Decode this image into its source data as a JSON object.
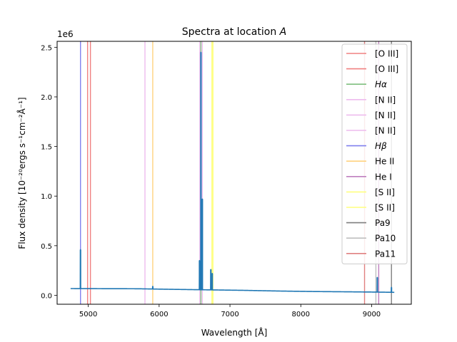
{
  "chart_data": {
    "type": "line",
    "title": "Spectra at location A",
    "title_parts": {
      "prefix": "Spectra at location ",
      "italic": "A"
    },
    "xlabel": "Wavelength [Å]",
    "ylabel": "Flux density [10⁻²⁰ergs s⁻¹cm⁻²Å⁻¹]",
    "y_multiplier_label": "1e6",
    "xlim": [
      4560,
      9560
    ],
    "ylim": [
      -0.09,
      2.56
    ],
    "x_ticks": [
      5000,
      6000,
      7000,
      8000,
      9000
    ],
    "x_tick_labels": [
      "5000",
      "6000",
      "7000",
      "8000",
      "9000"
    ],
    "y_ticks": [
      0.0,
      0.5,
      1.0,
      1.5,
      2.0,
      2.5
    ],
    "y_tick_labels": [
      "0.0",
      "0.5",
      "1.0",
      "1.5",
      "2.0",
      "2.5"
    ],
    "grid": false,
    "legend_position": "top-right",
    "spectrum": {
      "color": "#1f77b4",
      "continuum": [
        [
          4750,
          0.068
        ],
        [
          5200,
          0.067
        ],
        [
          5700,
          0.066
        ],
        [
          6200,
          0.06
        ],
        [
          6700,
          0.055
        ],
        [
          7200,
          0.05
        ],
        [
          7700,
          0.043
        ],
        [
          8200,
          0.038
        ],
        [
          8700,
          0.035
        ],
        [
          9000,
          0.033
        ],
        [
          9320,
          0.03
        ]
      ],
      "peaks": [
        {
          "x": 4890,
          "y": 0.46
        },
        {
          "x": 5910,
          "y": 0.09
        },
        {
          "x": 6570,
          "y": 0.35
        },
        {
          "x": 6590,
          "y": 2.45
        },
        {
          "x": 6610,
          "y": 0.97
        },
        {
          "x": 6730,
          "y": 0.26
        },
        {
          "x": 6750,
          "y": 0.22
        },
        {
          "x": 9080,
          "y": 0.18
        },
        {
          "x": 9280,
          "y": 0.08
        }
      ]
    },
    "lines": [
      {
        "label": "[O III]",
        "italic": false,
        "x": 4990,
        "color": "#f08080"
      },
      {
        "label": "[O III]",
        "italic": false,
        "x": 5030,
        "color": "#f08080"
      },
      {
        "label": "Hα",
        "italic": true,
        "x": 6590,
        "color": "#7fbf7f"
      },
      {
        "label": "[N II]",
        "italic": false,
        "x": 5800,
        "color": "#eebbee"
      },
      {
        "label": "[N II]",
        "italic": false,
        "x": 6575,
        "color": "#eebbee"
      },
      {
        "label": "[N II]",
        "italic": false,
        "x": 6610,
        "color": "#eebbee"
      },
      {
        "label": "Hβ",
        "italic": true,
        "x": 4890,
        "color": "#8080ee"
      },
      {
        "label": "He II",
        "italic": false,
        "x": 5910,
        "color": "#ffd27f"
      },
      {
        "label": "He I",
        "italic": false,
        "x": 9100,
        "color": "#bf7fbf"
      },
      {
        "label": "[S II]",
        "italic": false,
        "x": 6745,
        "color": "#ffff7f"
      },
      {
        "label": "[S II]",
        "italic": false,
        "x": 6760,
        "color": "#ffff7f"
      },
      {
        "label": "Pa9",
        "italic": false,
        "x": 9280,
        "color": "#7f7f7f"
      },
      {
        "label": "Pa10",
        "italic": false,
        "x": 9060,
        "color": "#bfbfbf"
      },
      {
        "label": "Pa11",
        "italic": false,
        "x": 8900,
        "color": "#e08080"
      }
    ]
  }
}
